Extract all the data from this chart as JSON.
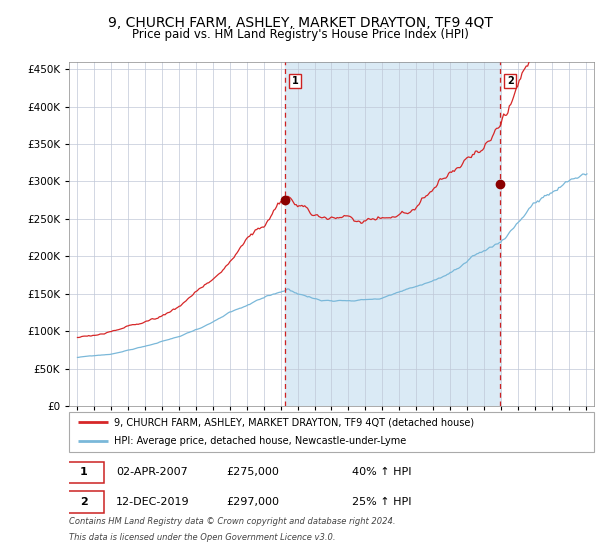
{
  "title": "9, CHURCH FARM, ASHLEY, MARKET DRAYTON, TF9 4QT",
  "subtitle": "Price paid vs. HM Land Registry's House Price Index (HPI)",
  "title_fontsize": 10,
  "subtitle_fontsize": 8.5,
  "hpi_color": "#7ab8d9",
  "price_color": "#d62728",
  "marker_color": "#8b0000",
  "vline_color": "#cc2222",
  "bg_color": "#daeaf5",
  "grid_color": "#c0c8d8",
  "sale1_date_x": 2007.25,
  "sale1_price": 275000,
  "sale2_date_x": 2019.95,
  "sale2_price": 297000,
  "ylim": [
    0,
    460000
  ],
  "xlim_start": 1994.5,
  "xlim_end": 2025.5,
  "legend_line1": "9, CHURCH FARM, ASHLEY, MARKET DRAYTON, TF9 4QT (detached house)",
  "legend_line2": "HPI: Average price, detached house, Newcastle-under-Lyme",
  "footer1": "Contains HM Land Registry data © Crown copyright and database right 2024.",
  "footer2": "This data is licensed under the Open Government Licence v3.0.",
  "table_row1": [
    "1",
    "02-APR-2007",
    "£275,000",
    "40% ↑ HPI"
  ],
  "table_row2": [
    "2",
    "12-DEC-2019",
    "£297,000",
    "25% ↑ HPI"
  ]
}
